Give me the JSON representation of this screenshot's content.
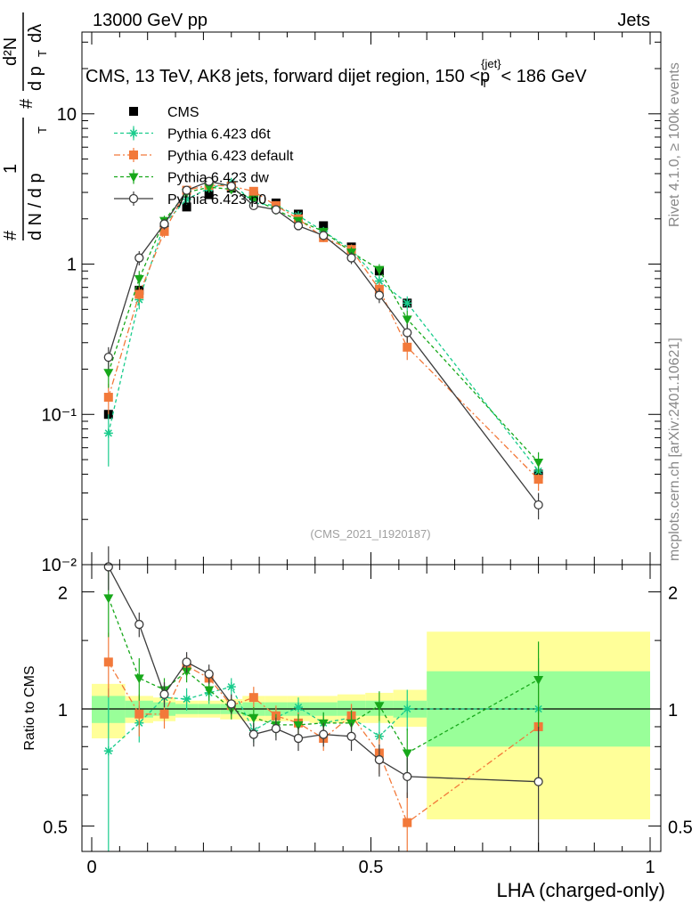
{
  "header": {
    "left": "13000 GeV pp",
    "right": "Jets"
  },
  "side_labels": {
    "rivet": "Rivet 4.1.0, ≥ 100k events",
    "mcplots": "mcplots.cern.ch [arXiv:2401.10621]"
  },
  "colors": {
    "cms": "#000000",
    "d6t": "#19cc8c",
    "default": "#f2793a",
    "dw": "#17a81a",
    "p0": "#3c3c3c",
    "band_outer": "#ffff99",
    "band_inner": "#99ff99"
  },
  "chart_data": [
    {
      "type": "line",
      "title": "CMS, 13 TeV, AK8 jets, forward dijet region, 150 <p_T^{jet}< 186 GeV",
      "title_parts": {
        "main": "CMS, 13 TeV, AK8 jets, forward dijet region, 150 <p",
        "sub": "T",
        "sup": "{jet}",
        "tail": "< 186 GeV"
      },
      "ylabel_parts": {
        "frac": "1",
        "hash": "#",
        "d2N": "d²N",
        "dNdpT": "d N / d p",
        "dpT": "d p",
        "dlambda": "dλ",
        "sub": "T"
      },
      "xlabel": "",
      "yscale": "log",
      "ylim": [
        0.01,
        35
      ],
      "xlim": [
        0,
        1
      ],
      "yticks": [
        {
          "v": 0.01,
          "label": "10⁻²"
        },
        {
          "v": 0.1,
          "label": "10⁻¹"
        },
        {
          "v": 1,
          "label": "1"
        },
        {
          "v": 10,
          "label": "10"
        }
      ],
      "watermark": "(CMS_2021_I1920187)",
      "x": [
        0.03,
        0.085,
        0.13,
        0.17,
        0.21,
        0.25,
        0.29,
        0.33,
        0.37,
        0.415,
        0.465,
        0.515,
        0.565,
        0.8
      ],
      "series": [
        {
          "name": "CMS",
          "key": "cms",
          "marker": "square",
          "values": [
            0.1,
            0.67,
            1.7,
            2.4,
            2.9,
            3.2,
            2.85,
            2.55,
            2.15,
            1.8,
            1.3,
            0.9,
            0.55,
            0.04
          ]
        },
        {
          "name": "Pythia 6.423 d6t",
          "key": "d6t",
          "marker": "star",
          "dash": "4,3",
          "values": [
            0.075,
            0.58,
            1.85,
            2.7,
            3.2,
            3.5,
            2.55,
            2.45,
            2.1,
            1.65,
            1.25,
            0.77,
            0.55,
            0.042
          ],
          "errors": [
            0.03,
            0.08,
            0.15,
            0.2,
            0.2,
            0.2,
            0.15,
            0.15,
            0.1,
            0.1,
            0.1,
            0.08,
            0.06,
            0.008
          ]
        },
        {
          "name": "Pythia 6.423 default",
          "key": "default",
          "marker": "square",
          "dash": "7,3,2,3",
          "values": [
            0.13,
            0.63,
            1.65,
            3.1,
            3.35,
            3.3,
            3.05,
            2.45,
            2.0,
            1.5,
            1.25,
            0.68,
            0.28,
            0.037
          ],
          "errors": [
            0.03,
            0.08,
            0.15,
            0.2,
            0.2,
            0.2,
            0.2,
            0.15,
            0.1,
            0.1,
            0.1,
            0.08,
            0.05,
            0.006
          ]
        },
        {
          "name": "Pythia 6.423 dw",
          "key": "dw",
          "marker": "triangle-down",
          "dash": "4,3",
          "values": [
            0.19,
            0.8,
            1.95,
            3.0,
            3.25,
            3.15,
            2.7,
            2.3,
            1.95,
            1.65,
            1.2,
            0.92,
            0.43,
            0.048
          ],
          "errors": [
            0.04,
            0.1,
            0.15,
            0.2,
            0.2,
            0.2,
            0.15,
            0.15,
            0.1,
            0.1,
            0.1,
            0.08,
            0.06,
            0.008
          ]
        },
        {
          "name": "Pythia 6.423 p0",
          "key": "p0",
          "marker": "circle-open",
          "values": [
            0.24,
            1.1,
            1.85,
            3.1,
            3.55,
            3.3,
            2.45,
            2.3,
            1.8,
            1.55,
            1.1,
            0.62,
            0.35,
            0.025
          ],
          "errors": [
            0.04,
            0.12,
            0.15,
            0.2,
            0.2,
            0.2,
            0.15,
            0.15,
            0.1,
            0.1,
            0.1,
            0.07,
            0.05,
            0.005
          ]
        }
      ]
    },
    {
      "type": "line",
      "title": "",
      "xlabel": "LHA (charged-only)",
      "ylabel": "Ratio to CMS",
      "yscale": "log",
      "ylim": [
        0.43,
        2.35
      ],
      "xlim": [
        0,
        1
      ],
      "yticks": [
        {
          "v": 0.5,
          "label": "0.5"
        },
        {
          "v": 1,
          "label": "1"
        },
        {
          "v": 2,
          "label": "2"
        }
      ],
      "xticks": [
        {
          "v": 0,
          "label": "0"
        },
        {
          "v": 0.5,
          "label": "0.5"
        },
        {
          "v": 1,
          "label": "1"
        }
      ],
      "bins": [
        [
          0,
          0.06
        ],
        [
          0.06,
          0.11
        ],
        [
          0.11,
          0.15
        ],
        [
          0.15,
          0.19
        ],
        [
          0.19,
          0.23
        ],
        [
          0.23,
          0.27
        ],
        [
          0.27,
          0.31
        ],
        [
          0.31,
          0.35
        ],
        [
          0.35,
          0.39
        ],
        [
          0.39,
          0.44
        ],
        [
          0.44,
          0.49
        ],
        [
          0.49,
          0.54
        ],
        [
          0.54,
          0.6
        ],
        [
          0.6,
          1.0
        ]
      ],
      "band_outer": [
        [
          0.84,
          1.16
        ],
        [
          0.92,
          1.08
        ],
        [
          0.93,
          1.07
        ],
        [
          0.95,
          1.05
        ],
        [
          0.95,
          1.05
        ],
        [
          0.94,
          1.06
        ],
        [
          0.93,
          1.08
        ],
        [
          0.93,
          1.08
        ],
        [
          0.93,
          1.08
        ],
        [
          0.92,
          1.08
        ],
        [
          0.92,
          1.09
        ],
        [
          0.92,
          1.1
        ],
        [
          0.9,
          1.12
        ],
        [
          0.52,
          1.58
        ]
      ],
      "band_inner": [
        [
          0.92,
          1.08
        ],
        [
          0.95,
          1.05
        ],
        [
          0.96,
          1.04
        ],
        [
          0.97,
          1.03
        ],
        [
          0.97,
          1.03
        ],
        [
          0.97,
          1.03
        ],
        [
          0.96,
          1.04
        ],
        [
          0.96,
          1.04
        ],
        [
          0.96,
          1.04
        ],
        [
          0.96,
          1.04
        ],
        [
          0.96,
          1.05
        ],
        [
          0.96,
          1.05
        ],
        [
          0.95,
          1.05
        ],
        [
          0.8,
          1.25
        ]
      ],
      "x": [
        0.03,
        0.085,
        0.13,
        0.17,
        0.21,
        0.25,
        0.29,
        0.33,
        0.37,
        0.415,
        0.465,
        0.515,
        0.565,
        0.8
      ],
      "series": [
        {
          "name": "Pythia 6.423 d6t",
          "key": "d6t",
          "marker": "star",
          "dash": "4,3",
          "values": [
            0.78,
            0.92,
            1.07,
            1.06,
            1.1,
            1.14,
            0.88,
            0.95,
            1.01,
            0.92,
            0.95,
            0.85,
            1.0,
            1.0
          ],
          "errors": [
            0.35,
            0.1,
            0.08,
            0.07,
            0.07,
            0.06,
            0.06,
            0.06,
            0.06,
            0.06,
            0.07,
            0.08,
            0.12,
            0.35
          ]
        },
        {
          "name": "Pythia 6.423 default",
          "key": "default",
          "marker": "square",
          "dash": "7,3,2,3",
          "values": [
            1.32,
            0.97,
            0.97,
            1.29,
            1.2,
            1.02,
            1.07,
            0.96,
            0.92,
            0.84,
            0.96,
            0.77,
            0.51,
            0.9
          ],
          "errors": [
            0.25,
            0.12,
            0.08,
            0.08,
            0.07,
            0.06,
            0.07,
            0.06,
            0.06,
            0.06,
            0.07,
            0.09,
            0.1,
            0.25
          ]
        },
        {
          "name": "Pythia 6.423 dw",
          "key": "dw",
          "marker": "triangle-down",
          "dash": "4,3",
          "values": [
            1.93,
            1.2,
            1.12,
            1.25,
            1.12,
            1.0,
            0.95,
            0.91,
            0.91,
            0.92,
            0.92,
            1.02,
            0.77,
            1.19
          ],
          "errors": [
            0.4,
            0.15,
            0.08,
            0.08,
            0.07,
            0.06,
            0.06,
            0.06,
            0.06,
            0.06,
            0.07,
            0.09,
            0.12,
            0.3
          ]
        },
        {
          "name": "Pythia 6.423 p0",
          "key": "p0",
          "marker": "circle-open",
          "values": [
            2.32,
            1.65,
            1.09,
            1.32,
            1.23,
            1.03,
            0.86,
            0.89,
            0.84,
            0.86,
            0.85,
            0.74,
            0.67,
            0.65
          ],
          "errors": [
            0.3,
            0.12,
            0.08,
            0.08,
            0.07,
            0.06,
            0.06,
            0.06,
            0.06,
            0.06,
            0.07,
            0.07,
            0.08,
            0.25
          ]
        }
      ]
    }
  ]
}
